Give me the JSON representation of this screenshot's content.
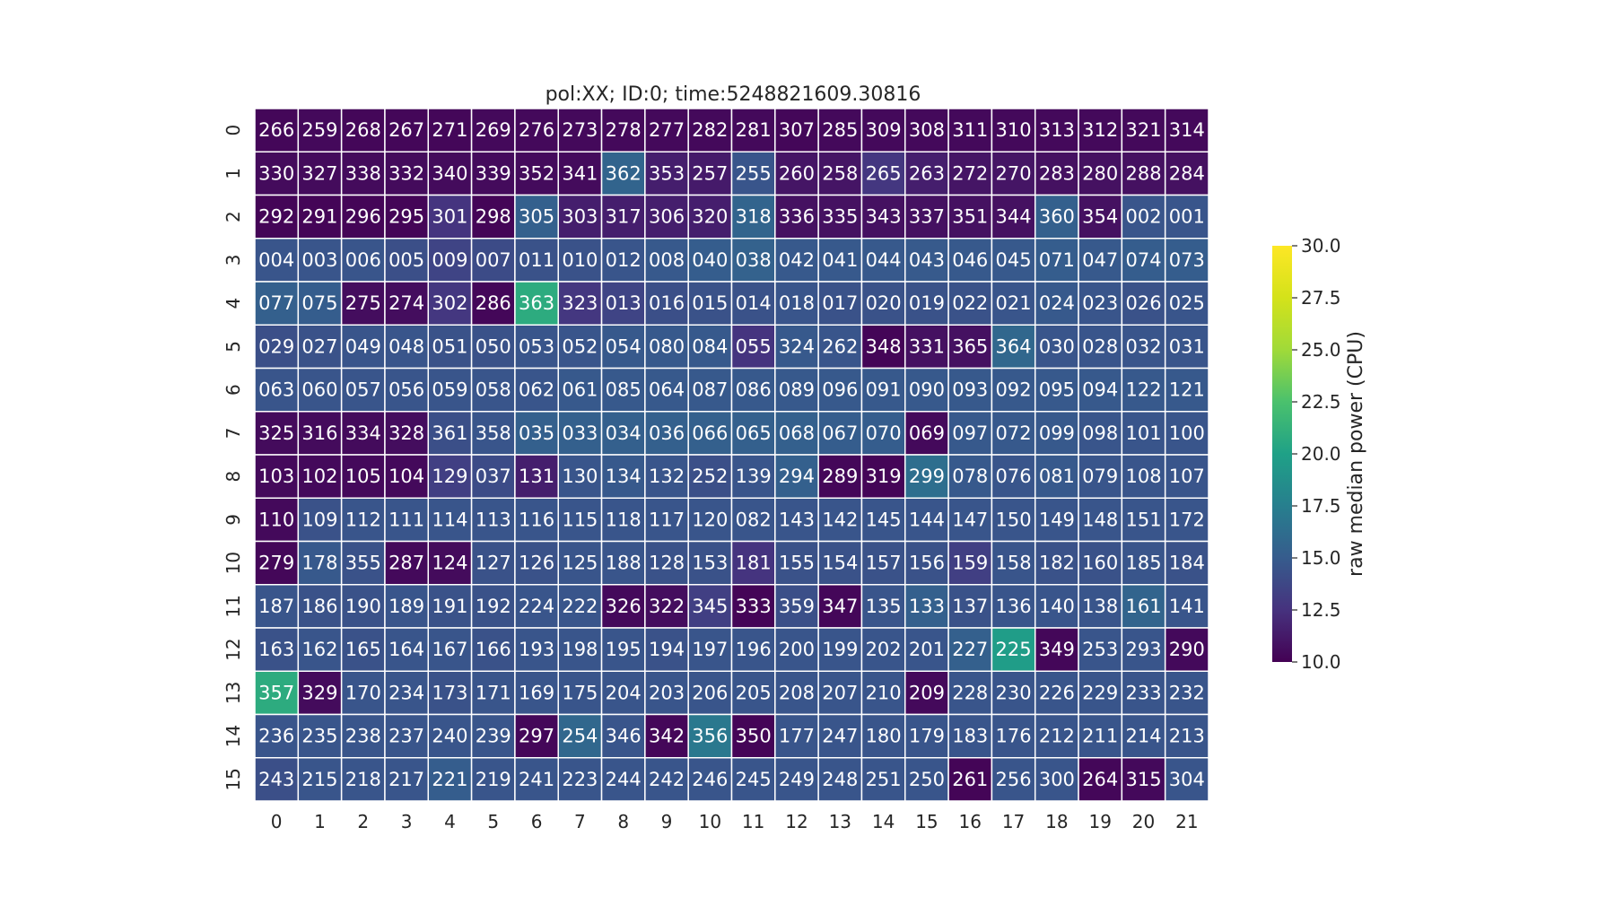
{
  "chart_data": {
    "type": "heatmap",
    "title": "pol:XX; ID:0; time:5248821609.30816",
    "colorbar_label": "raw median power (CPU)",
    "colormap": "viridis",
    "vmin": 10.0,
    "vmax": 30.0,
    "colorbar_ticks": [
      "10.0",
      "12.5",
      "15.0",
      "17.5",
      "20.0",
      "22.5",
      "25.0",
      "27.5",
      "30.0"
    ],
    "x_tick_labels": [
      "0",
      "1",
      "2",
      "3",
      "4",
      "5",
      "6",
      "7",
      "8",
      "9",
      "10",
      "11",
      "12",
      "13",
      "14",
      "15",
      "16",
      "17",
      "18",
      "19",
      "20",
      "21"
    ],
    "y_tick_labels": [
      "0",
      "1",
      "2",
      "3",
      "4",
      "5",
      "6",
      "7",
      "8",
      "9",
      "10",
      "11",
      "12",
      "13",
      "14",
      "15"
    ],
    "annotations": [
      [
        "266",
        "259",
        "268",
        "267",
        "271",
        "269",
        "276",
        "273",
        "278",
        "277",
        "282",
        "281",
        "307",
        "285",
        "309",
        "308",
        "311",
        "310",
        "313",
        "312",
        "321",
        "314"
      ],
      [
        "330",
        "327",
        "338",
        "332",
        "340",
        "339",
        "352",
        "341",
        "362",
        "353",
        "257",
        "255",
        "260",
        "258",
        "265",
        "263",
        "272",
        "270",
        "283",
        "280",
        "288",
        "284"
      ],
      [
        "292",
        "291",
        "296",
        "295",
        "301",
        "298",
        "305",
        "303",
        "317",
        "306",
        "320",
        "318",
        "336",
        "335",
        "343",
        "337",
        "351",
        "344",
        "360",
        "354",
        "002",
        "001"
      ],
      [
        "004",
        "003",
        "006",
        "005",
        "009",
        "007",
        "011",
        "010",
        "012",
        "008",
        "040",
        "038",
        "042",
        "041",
        "044",
        "043",
        "046",
        "045",
        "071",
        "047",
        "074",
        "073"
      ],
      [
        "077",
        "075",
        "275",
        "274",
        "302",
        "286",
        "363",
        "323",
        "013",
        "016",
        "015",
        "014",
        "018",
        "017",
        "020",
        "019",
        "022",
        "021",
        "024",
        "023",
        "026",
        "025"
      ],
      [
        "029",
        "027",
        "049",
        "048",
        "051",
        "050",
        "053",
        "052",
        "054",
        "080",
        "084",
        "055",
        "324",
        "262",
        "348",
        "331",
        "365",
        "364",
        "030",
        "028",
        "032",
        "031"
      ],
      [
        "063",
        "060",
        "057",
        "056",
        "059",
        "058",
        "062",
        "061",
        "085",
        "064",
        "087",
        "086",
        "089",
        "096",
        "091",
        "090",
        "093",
        "092",
        "095",
        "094",
        "122",
        "121"
      ],
      [
        "325",
        "316",
        "334",
        "328",
        "361",
        "358",
        "035",
        "033",
        "034",
        "036",
        "066",
        "065",
        "068",
        "067",
        "070",
        "069",
        "097",
        "072",
        "099",
        "098",
        "101",
        "100"
      ],
      [
        "103",
        "102",
        "105",
        "104",
        "129",
        "037",
        "131",
        "130",
        "134",
        "132",
        "252",
        "139",
        "294",
        "289",
        "319",
        "299",
        "078",
        "076",
        "081",
        "079",
        "108",
        "107"
      ],
      [
        "110",
        "109",
        "112",
        "111",
        "114",
        "113",
        "116",
        "115",
        "118",
        "117",
        "120",
        "082",
        "143",
        "142",
        "145",
        "144",
        "147",
        "150",
        "149",
        "148",
        "151",
        "172"
      ],
      [
        "279",
        "178",
        "355",
        "287",
        "124",
        "127",
        "126",
        "125",
        "188",
        "128",
        "153",
        "181",
        "155",
        "154",
        "157",
        "156",
        "159",
        "158",
        "182",
        "160",
        "185",
        "184"
      ],
      [
        "187",
        "186",
        "190",
        "189",
        "191",
        "192",
        "224",
        "222",
        "326",
        "322",
        "345",
        "333",
        "359",
        "347",
        "135",
        "133",
        "137",
        "136",
        "140",
        "138",
        "161",
        "141"
      ],
      [
        "163",
        "162",
        "165",
        "164",
        "167",
        "166",
        "193",
        "198",
        "195",
        "194",
        "197",
        "196",
        "200",
        "199",
        "202",
        "201",
        "227",
        "225",
        "349",
        "253",
        "293",
        "290"
      ],
      [
        "357",
        "329",
        "170",
        "234",
        "173",
        "171",
        "169",
        "175",
        "204",
        "203",
        "206",
        "205",
        "208",
        "207",
        "210",
        "209",
        "228",
        "230",
        "226",
        "229",
        "233",
        "232"
      ],
      [
        "236",
        "235",
        "238",
        "237",
        "240",
        "239",
        "297",
        "254",
        "346",
        "342",
        "356",
        "350",
        "177",
        "247",
        "180",
        "179",
        "183",
        "176",
        "212",
        "211",
        "214",
        "213"
      ],
      [
        "243",
        "215",
        "218",
        "217",
        "221",
        "219",
        "241",
        "223",
        "244",
        "242",
        "246",
        "245",
        "249",
        "248",
        "251",
        "250",
        "261",
        "256",
        "300",
        "264",
        "315",
        "304"
      ]
    ],
    "values": [
      [
        10.3,
        10.4,
        10.3,
        10.3,
        10.3,
        10.4,
        10.4,
        10.4,
        10.4,
        10.4,
        10.4,
        10.4,
        10.3,
        10.4,
        10.4,
        10.4,
        10.4,
        10.4,
        10.4,
        10.4,
        10.4,
        10.4
      ],
      [
        10.5,
        10.5,
        10.5,
        10.5,
        10.5,
        10.5,
        10.5,
        10.5,
        15.6,
        11.5,
        11.3,
        14.6,
        11.0,
        11.0,
        12.8,
        11.5,
        11.0,
        11.0,
        10.8,
        10.8,
        10.8,
        10.8
      ],
      [
        10.2,
        10.2,
        10.2,
        10.2,
        12.6,
        10.2,
        15.3,
        11.5,
        11.5,
        11.5,
        11.5,
        15.6,
        10.8,
        10.8,
        10.8,
        10.8,
        10.8,
        10.8,
        15.3,
        10.8,
        14.6,
        14.6
      ],
      [
        14.6,
        14.6,
        14.6,
        14.2,
        13.6,
        14.0,
        14.4,
        14.4,
        14.6,
        14.8,
        15.1,
        15.4,
        14.8,
        14.8,
        14.8,
        14.9,
        14.8,
        14.8,
        15.1,
        14.8,
        15.1,
        15.1
      ],
      [
        15.3,
        15.1,
        10.6,
        10.6,
        12.8,
        10.3,
        20.8,
        12.8,
        13.6,
        14.2,
        14.4,
        14.4,
        14.6,
        14.4,
        14.4,
        14.4,
        14.4,
        14.6,
        14.8,
        14.6,
        14.4,
        14.6
      ],
      [
        14.2,
        14.4,
        14.6,
        14.6,
        14.4,
        14.4,
        14.6,
        14.6,
        14.8,
        14.8,
        14.8,
        12.6,
        14.8,
        14.6,
        10.2,
        10.8,
        10.8,
        15.8,
        14.6,
        14.6,
        14.6,
        14.6
      ],
      [
        14.6,
        14.6,
        14.6,
        14.6,
        14.6,
        14.6,
        14.6,
        14.8,
        14.8,
        14.8,
        14.8,
        14.8,
        14.8,
        14.8,
        14.8,
        14.8,
        14.8,
        14.8,
        14.8,
        14.8,
        14.8,
        14.8
      ],
      [
        10.5,
        10.5,
        10.5,
        10.6,
        14.2,
        14.6,
        15.3,
        15.3,
        15.3,
        15.3,
        15.3,
        15.3,
        15.3,
        15.1,
        15.1,
        10.4,
        14.8,
        14.8,
        14.8,
        14.6,
        14.6,
        14.6
      ],
      [
        10.4,
        10.4,
        10.4,
        10.4,
        13.3,
        14.0,
        11.5,
        14.6,
        14.8,
        14.6,
        14.2,
        14.6,
        15.3,
        10.3,
        10.2,
        16.3,
        14.8,
        14.6,
        14.8,
        14.6,
        14.6,
        14.6
      ],
      [
        10.4,
        14.4,
        14.6,
        14.6,
        14.6,
        14.6,
        14.6,
        14.6,
        14.6,
        14.6,
        14.6,
        14.6,
        14.6,
        14.6,
        14.6,
        14.6,
        14.6,
        14.6,
        14.6,
        14.6,
        14.6,
        14.6
      ],
      [
        10.3,
        14.8,
        14.4,
        10.4,
        10.5,
        14.4,
        14.4,
        14.6,
        14.6,
        14.4,
        14.4,
        12.6,
        14.4,
        14.4,
        14.4,
        14.4,
        13.3,
        14.6,
        14.4,
        14.4,
        14.6,
        14.4
      ],
      [
        14.6,
        14.4,
        14.4,
        14.6,
        14.4,
        14.4,
        14.6,
        14.6,
        10.4,
        10.6,
        13.3,
        10.2,
        14.2,
        10.3,
        14.6,
        15.3,
        14.4,
        14.6,
        14.6,
        14.6,
        15.6,
        14.6
      ],
      [
        14.4,
        14.6,
        14.4,
        14.6,
        14.6,
        14.4,
        14.6,
        14.6,
        14.6,
        14.4,
        14.6,
        14.6,
        14.6,
        14.6,
        14.6,
        14.6,
        15.3,
        19.7,
        10.3,
        14.6,
        14.6,
        10.4
      ],
      [
        20.8,
        10.5,
        14.6,
        14.6,
        14.4,
        14.6,
        14.6,
        14.6,
        14.6,
        14.6,
        14.6,
        14.6,
        14.6,
        14.6,
        14.6,
        10.4,
        14.6,
        14.6,
        14.6,
        14.6,
        14.6,
        14.6
      ],
      [
        14.6,
        14.6,
        14.6,
        14.6,
        14.6,
        14.6,
        10.3,
        15.8,
        14.6,
        10.3,
        17.0,
        10.2,
        14.6,
        14.6,
        14.6,
        14.6,
        14.6,
        14.6,
        14.6,
        14.6,
        14.6,
        14.6
      ],
      [
        14.2,
        14.6,
        14.6,
        14.6,
        15.1,
        14.6,
        14.6,
        14.6,
        14.6,
        14.6,
        14.6,
        14.6,
        14.6,
        14.6,
        14.6,
        14.6,
        10.2,
        14.6,
        14.6,
        10.3,
        10.4,
        14.6
      ]
    ]
  }
}
